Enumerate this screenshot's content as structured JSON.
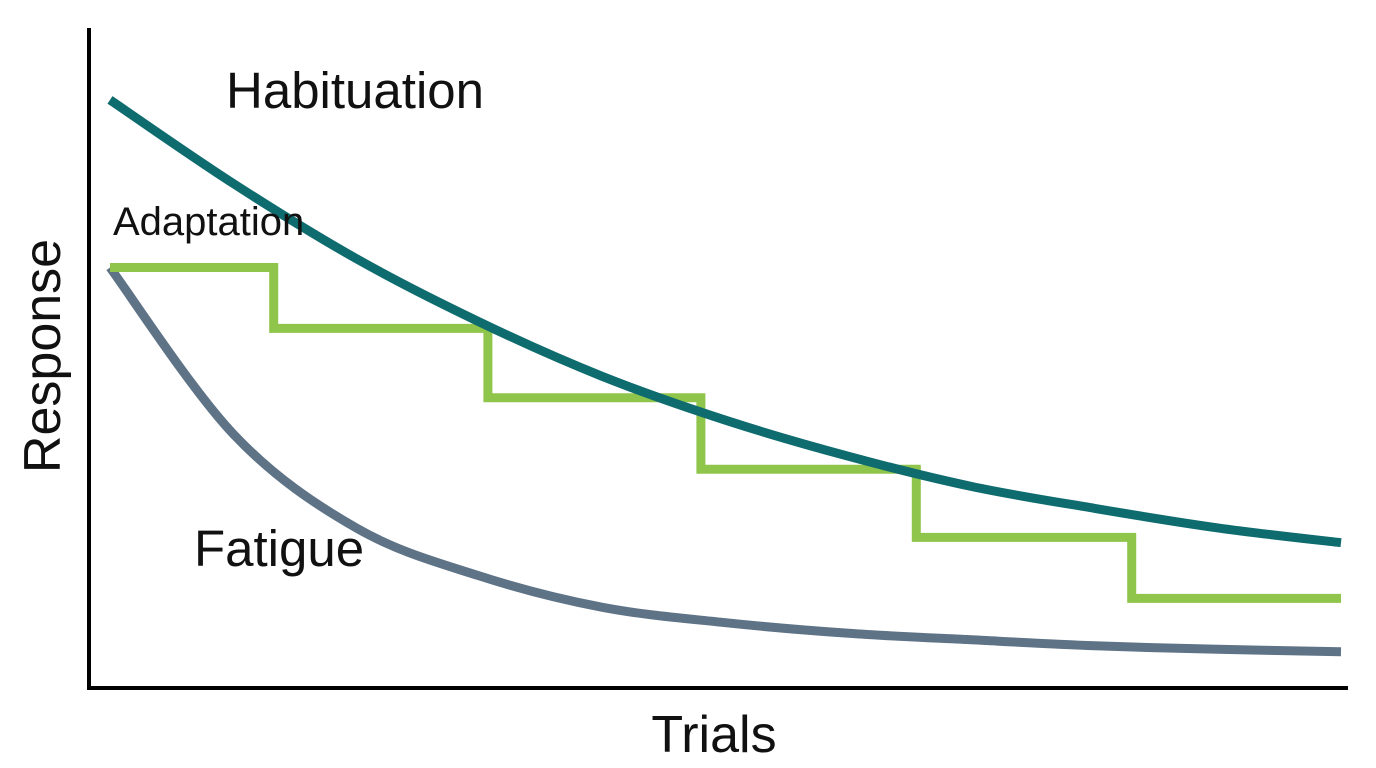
{
  "chart_data": {
    "type": "line",
    "xlabel": "Trials",
    "ylabel": "Response",
    "grid": false,
    "axis_ticks": false,
    "xlim": [
      0,
      100
    ],
    "ylim": [
      0,
      100
    ],
    "series": [
      {
        "name": "Habituation",
        "color": "#0e6b6e",
        "shape": "curve",
        "x": [
          0,
          10,
          20,
          30,
          40,
          50,
          60,
          70,
          80,
          90,
          100
        ],
        "y": [
          94.1,
          80.0,
          67.3,
          56.6,
          47.4,
          40.0,
          33.9,
          28.8,
          25.1,
          21.8,
          19.3
        ]
      },
      {
        "name": "Adaptation",
        "color": "#8fc54a",
        "shape": "step",
        "x": [
          0,
          13.3,
          13.3,
          30.7,
          30.7,
          48.0,
          48.0,
          65.5,
          65.5,
          83.0,
          83.0,
          100
        ],
        "y": [
          65.8,
          65.8,
          55.5,
          55.5,
          43.8,
          43.8,
          31.7,
          31.7,
          20.2,
          20.2,
          9.9,
          9.9
        ]
      },
      {
        "name": "Fatigue",
        "color": "#5f7387",
        "shape": "curve",
        "x": [
          0,
          10,
          20,
          30,
          40,
          50,
          60,
          70,
          80,
          90,
          100
        ],
        "y": [
          65.8,
          37.7,
          21.8,
          13.7,
          8.4,
          5.8,
          4.0,
          2.9,
          1.9,
          1.3,
          0.9
        ]
      }
    ],
    "annotations": {
      "habituation": "Habituation",
      "adaptation": "Adaptation",
      "fatigue": "Fatigue"
    }
  }
}
